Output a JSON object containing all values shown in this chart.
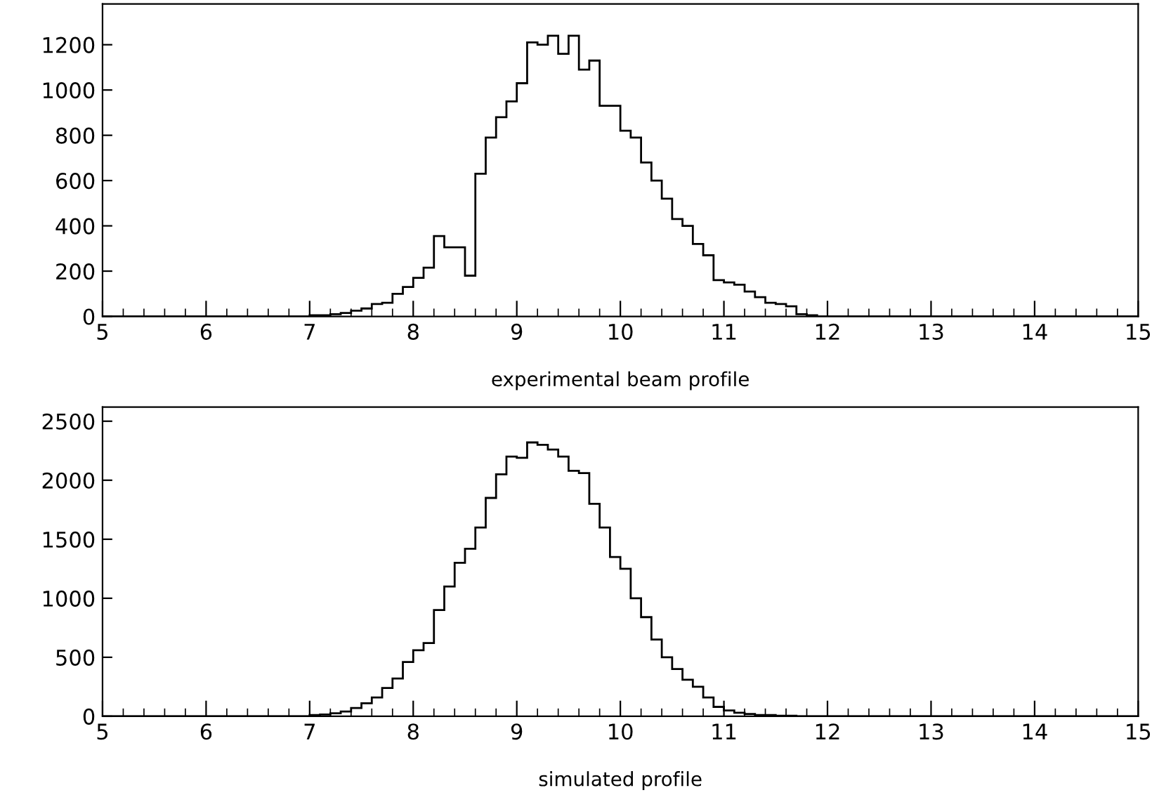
{
  "chart_data": [
    {
      "type": "histogram",
      "xlabel": "experimental beam profile",
      "xlim": [
        5,
        15
      ],
      "ylim": [
        0,
        1380
      ],
      "bins": [
        5.0,
        5.1,
        5.2,
        5.3,
        5.4,
        5.5,
        5.6,
        5.7,
        5.8,
        5.9,
        6.0,
        6.1,
        6.2,
        6.3,
        6.4,
        6.5,
        6.6,
        6.7,
        6.8,
        6.9,
        7.0,
        7.1,
        7.2,
        7.3,
        7.4,
        7.5,
        7.6,
        7.7,
        7.8,
        7.9,
        8.0,
        8.1,
        8.2,
        8.3,
        8.4,
        8.5,
        8.6,
        8.7,
        8.8,
        8.9,
        9.0,
        9.1,
        9.2,
        9.3,
        9.4,
        9.5,
        9.6,
        9.7,
        9.8,
        9.9,
        10.0,
        10.1,
        10.2,
        10.3,
        10.4,
        10.5,
        10.6,
        10.7,
        10.8,
        10.9,
        11.0,
        11.1,
        11.2,
        11.3,
        11.4,
        11.5,
        11.6,
        11.7,
        11.8,
        11.9,
        12.0,
        12.1,
        12.2,
        12.3,
        12.4,
        12.5,
        12.6,
        12.7,
        12.8,
        12.9,
        13.0,
        13.1,
        13.2,
        13.3,
        13.4,
        13.5,
        13.6,
        13.7,
        13.8,
        13.9,
        14.0,
        14.1,
        14.2,
        14.3,
        14.4,
        14.5,
        14.6,
        14.7,
        14.8,
        14.9,
        15.0
      ],
      "values": [
        0,
        0,
        0,
        0,
        0,
        0,
        0,
        0,
        0,
        0,
        0,
        0,
        0,
        0,
        0,
        0,
        0,
        0,
        0,
        0,
        5,
        5,
        10,
        15,
        25,
        35,
        55,
        60,
        100,
        130,
        170,
        215,
        355,
        305,
        305,
        180,
        630,
        790,
        880,
        950,
        1030,
        1210,
        1200,
        1240,
        1160,
        1240,
        1090,
        1130,
        930,
        930,
        820,
        790,
        680,
        600,
        520,
        430,
        400,
        320,
        270,
        160,
        150,
        140,
        110,
        85,
        60,
        55,
        45,
        10,
        5,
        0,
        0,
        0,
        0,
        0,
        0,
        0,
        0,
        0,
        0,
        0,
        0,
        0,
        0,
        0,
        0,
        0,
        0,
        0,
        0,
        0,
        0,
        0,
        0,
        0,
        0,
        0,
        0,
        0,
        0,
        0
      ],
      "xticks": [
        5,
        {
          "value": 5.2,
          "label": null
        },
        {
          "value": 5.4,
          "label": null
        },
        {
          "value": 5.6,
          "label": null
        },
        {
          "value": 5.8,
          "label": null
        },
        6,
        {
          "value": 6.2,
          "label": null
        },
        {
          "value": 6.4,
          "label": null
        },
        {
          "value": 6.6,
          "label": null
        },
        {
          "value": 6.8,
          "label": null
        },
        7,
        {
          "value": 7.2,
          "label": null
        },
        {
          "value": 7.4,
          "label": null
        },
        {
          "value": 7.6,
          "label": null
        },
        {
          "value": 7.8,
          "label": null
        },
        8,
        {
          "value": 8.2,
          "label": null
        },
        {
          "value": 8.4,
          "label": null
        },
        {
          "value": 8.6,
          "label": null
        },
        {
          "value": 8.8,
          "label": null
        },
        9,
        {
          "value": 9.2,
          "label": null
        },
        {
          "value": 9.4,
          "label": null
        },
        {
          "value": 9.6,
          "label": null
        },
        {
          "value": 9.8,
          "label": null
        },
        10,
        {
          "value": 10.2,
          "label": null
        },
        {
          "value": 10.4,
          "label": null
        },
        {
          "value": 10.6,
          "label": null
        },
        {
          "value": 10.8,
          "label": null
        },
        11,
        {
          "value": 11.2,
          "label": null
        },
        {
          "value": 11.4,
          "label": null
        },
        {
          "value": 11.6,
          "label": null
        },
        {
          "value": 11.8,
          "label": null
        },
        12,
        {
          "value": 12.2,
          "label": null
        },
        {
          "value": 12.4,
          "label": null
        },
        {
          "value": 12.6,
          "label": null
        },
        {
          "value": 12.8,
          "label": null
        },
        13,
        {
          "value": 13.2,
          "label": null
        },
        {
          "value": 13.4,
          "label": null
        },
        {
          "value": 13.6,
          "label": null
        },
        {
          "value": 13.8,
          "label": null
        },
        14,
        {
          "value": 14.2,
          "label": null
        },
        {
          "value": 14.4,
          "label": null
        },
        {
          "value": 14.6,
          "label": null
        },
        {
          "value": 14.8,
          "label": null
        },
        15
      ],
      "yticks": [
        0,
        200,
        400,
        600,
        800,
        1000,
        1200
      ]
    },
    {
      "type": "histogram",
      "xlabel": "simulated profile",
      "xlim": [
        5,
        15
      ],
      "ylim": [
        0,
        2620
      ],
      "bins": [
        5.0,
        5.1,
        5.2,
        5.3,
        5.4,
        5.5,
        5.6,
        5.7,
        5.8,
        5.9,
        6.0,
        6.1,
        6.2,
        6.3,
        6.4,
        6.5,
        6.6,
        6.7,
        6.8,
        6.9,
        7.0,
        7.1,
        7.2,
        7.3,
        7.4,
        7.5,
        7.6,
        7.7,
        7.8,
        7.9,
        8.0,
        8.1,
        8.2,
        8.3,
        8.4,
        8.5,
        8.6,
        8.7,
        8.8,
        8.9,
        9.0,
        9.1,
        9.2,
        9.3,
        9.4,
        9.5,
        9.6,
        9.7,
        9.8,
        9.9,
        10.0,
        10.1,
        10.2,
        10.3,
        10.4,
        10.5,
        10.6,
        10.7,
        10.8,
        10.9,
        11.0,
        11.1,
        11.2,
        11.3,
        11.4,
        11.5,
        11.6,
        11.7,
        11.8,
        11.9,
        12.0,
        12.1,
        12.2,
        12.3,
        12.4,
        12.5,
        12.6,
        12.7,
        12.8,
        12.9,
        13.0,
        13.1,
        13.2,
        13.3,
        13.4,
        13.5,
        13.6,
        13.7,
        13.8,
        13.9,
        14.0,
        14.1,
        14.2,
        14.3,
        14.4,
        14.5,
        14.6,
        14.7,
        14.8,
        14.9,
        15.0
      ],
      "values": [
        0,
        0,
        0,
        0,
        0,
        0,
        0,
        0,
        0,
        0,
        0,
        0,
        0,
        0,
        0,
        0,
        0,
        0,
        0,
        0,
        10,
        15,
        25,
        40,
        70,
        110,
        160,
        240,
        320,
        460,
        560,
        620,
        900,
        1100,
        1300,
        1420,
        1600,
        1850,
        2050,
        2200,
        2190,
        2320,
        2300,
        2260,
        2200,
        2080,
        2060,
        1800,
        1600,
        1350,
        1250,
        1000,
        840,
        650,
        500,
        400,
        310,
        250,
        160,
        80,
        50,
        30,
        20,
        10,
        10,
        5,
        5,
        0,
        0,
        0,
        0,
        0,
        0,
        0,
        0,
        0,
        0,
        0,
        0,
        0,
        0,
        0,
        0,
        0,
        0,
        0,
        0,
        0,
        0,
        0,
        0,
        0,
        0,
        0,
        0,
        0,
        0,
        0,
        0,
        0
      ],
      "xticks": [
        5,
        {
          "value": 5.2,
          "label": null
        },
        {
          "value": 5.4,
          "label": null
        },
        {
          "value": 5.6,
          "label": null
        },
        {
          "value": 5.8,
          "label": null
        },
        6,
        {
          "value": 6.2,
          "label": null
        },
        {
          "value": 6.4,
          "label": null
        },
        {
          "value": 6.6,
          "label": null
        },
        {
          "value": 6.8,
          "label": null
        },
        7,
        {
          "value": 7.2,
          "label": null
        },
        {
          "value": 7.4,
          "label": null
        },
        {
          "value": 7.6,
          "label": null
        },
        {
          "value": 7.8,
          "label": null
        },
        8,
        {
          "value": 8.2,
          "label": null
        },
        {
          "value": 8.4,
          "label": null
        },
        {
          "value": 8.6,
          "label": null
        },
        {
          "value": 8.8,
          "label": null
        },
        9,
        {
          "value": 9.2,
          "label": null
        },
        {
          "value": 9.4,
          "label": null
        },
        {
          "value": 9.6,
          "label": null
        },
        {
          "value": 9.8,
          "label": null
        },
        10,
        {
          "value": 10.2,
          "label": null
        },
        {
          "value": 10.4,
          "label": null
        },
        {
          "value": 10.6,
          "label": null
        },
        {
          "value": 10.8,
          "label": null
        },
        11,
        {
          "value": 11.2,
          "label": null
        },
        {
          "value": 11.4,
          "label": null
        },
        {
          "value": 11.6,
          "label": null
        },
        {
          "value": 11.8,
          "label": null
        },
        12,
        {
          "value": 12.2,
          "label": null
        },
        {
          "value": 12.4,
          "label": null
        },
        {
          "value": 12.6,
          "label": null
        },
        {
          "value": 12.8,
          "label": null
        },
        13,
        {
          "value": 13.2,
          "label": null
        },
        {
          "value": 13.4,
          "label": null
        },
        {
          "value": 13.6,
          "label": null
        },
        {
          "value": 13.8,
          "label": null
        },
        14,
        {
          "value": 14.2,
          "label": null
        },
        {
          "value": 14.4,
          "label": null
        },
        {
          "value": 14.6,
          "label": null
        },
        {
          "value": 14.8,
          "label": null
        },
        15
      ],
      "yticks": [
        0,
        500,
        1000,
        1500,
        2000,
        2500
      ]
    }
  ]
}
